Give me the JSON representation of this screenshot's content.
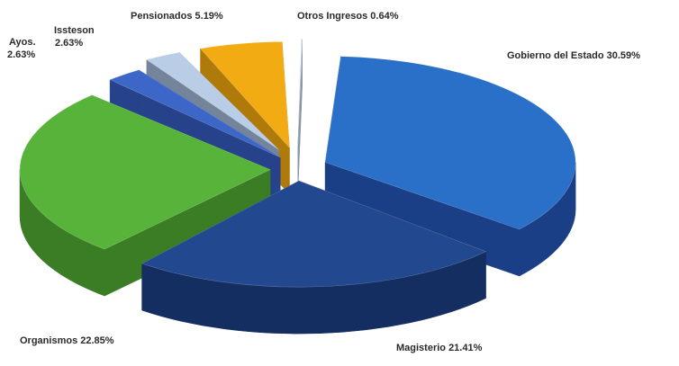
{
  "chart_data": {
    "type": "pie",
    "title": "",
    "style": "3d-exploded",
    "categories": [
      "Gobierno del Estado",
      "Magisterio",
      "Organismos",
      "Ayos.",
      "Issteson",
      "Pensionados",
      "Otros Ingresos"
    ],
    "values": [
      30.59,
      21.41,
      22.85,
      2.63,
      2.63,
      5.19,
      0.64
    ],
    "units": "%",
    "labels": [
      "Gobierno del Estado 30.59%",
      "Magisterio 21.41%",
      "Organismos 22.85%",
      "Ayos.",
      "2.63%",
      "Issteson",
      "2.63%",
      "Pensionados 5.19%",
      "Otros Ingresos 0.64%"
    ],
    "legend": "none"
  }
}
